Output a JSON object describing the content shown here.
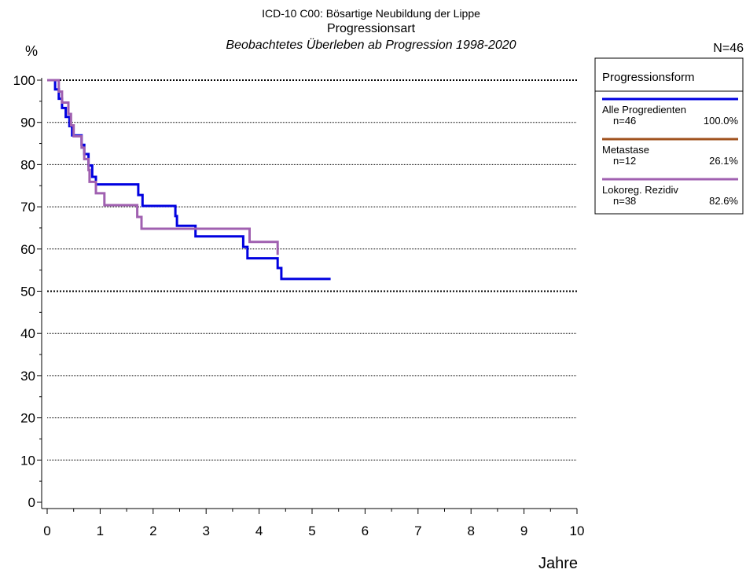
{
  "chart_data": {
    "type": "line",
    "title": "ICD-10 C00: Bösartige Neubildung der Lippe",
    "subtitle": "Progressionsart",
    "subtitle2": "Beobachtetes Überleben ab Progression 1998-2020",
    "n_total": "N=46",
    "ylabel": "%",
    "xlabel": "Jahre",
    "xlim": [
      0,
      10
    ],
    "ylim": [
      0,
      100
    ],
    "x_ticks": [
      "0",
      "1",
      "2",
      "3",
      "4",
      "5",
      "6",
      "7",
      "8",
      "9",
      "10"
    ],
    "y_ticks": [
      "0",
      "10",
      "20",
      "30",
      "40",
      "50",
      "60",
      "70",
      "80",
      "90",
      "100"
    ],
    "grid": "horizontal dotted, heavier at 50 and 100",
    "legend": {
      "title": "Progressionsform",
      "placement": "right",
      "entries": [
        {
          "label": "Alle Progredienten",
          "n": "n=46",
          "pct": "100.0%",
          "color": "#0000e0"
        },
        {
          "label": "Metastase",
          "n": "n=12",
          "pct": "26.1%",
          "color": "#a0521e"
        },
        {
          "label": "Lokoreg. Rezidiv",
          "n": "n=38",
          "pct": "82.6%",
          "color": "#a060b0"
        }
      ]
    },
    "series": [
      {
        "name": "Alle Progredienten",
        "color": "#0000e0",
        "points": [
          [
            0,
            100
          ],
          [
            0.15,
            100
          ],
          [
            0.15,
            97.8
          ],
          [
            0.22,
            97.8
          ],
          [
            0.22,
            95.6
          ],
          [
            0.28,
            95.6
          ],
          [
            0.28,
            93.4
          ],
          [
            0.35,
            93.4
          ],
          [
            0.35,
            91.3
          ],
          [
            0.42,
            91.3
          ],
          [
            0.42,
            89.1
          ],
          [
            0.47,
            89.1
          ],
          [
            0.47,
            86.9
          ],
          [
            0.65,
            86.9
          ],
          [
            0.65,
            84.7
          ],
          [
            0.7,
            84.7
          ],
          [
            0.7,
            82.5
          ],
          [
            0.78,
            82.5
          ],
          [
            0.78,
            79.8
          ],
          [
            0.85,
            79.8
          ],
          [
            0.85,
            77.1
          ],
          [
            0.92,
            77.1
          ],
          [
            0.92,
            75.3
          ],
          [
            1.72,
            75.3
          ],
          [
            1.72,
            72.8
          ],
          [
            1.8,
            72.8
          ],
          [
            1.8,
            70.2
          ],
          [
            2.42,
            70.2
          ],
          [
            2.42,
            67.8
          ],
          [
            2.45,
            67.8
          ],
          [
            2.45,
            65.5
          ],
          [
            2.8,
            65.5
          ],
          [
            2.8,
            63
          ],
          [
            3.7,
            63
          ],
          [
            3.7,
            60.5
          ],
          [
            3.78,
            60.5
          ],
          [
            3.78,
            57.8
          ],
          [
            4.35,
            57.8
          ],
          [
            4.35,
            55.5
          ],
          [
            4.42,
            55.5
          ],
          [
            4.42,
            52.9
          ],
          [
            5.35,
            52.9
          ]
        ]
      },
      {
        "name": "Lokoreg. Rezidiv",
        "color": "#a060b0",
        "points": [
          [
            0,
            100
          ],
          [
            0.22,
            100
          ],
          [
            0.22,
            97.3
          ],
          [
            0.28,
            97.3
          ],
          [
            0.28,
            94.7
          ],
          [
            0.4,
            94.7
          ],
          [
            0.4,
            92
          ],
          [
            0.45,
            92
          ],
          [
            0.45,
            89.3
          ],
          [
            0.5,
            89.3
          ],
          [
            0.5,
            86.7
          ],
          [
            0.65,
            86.7
          ],
          [
            0.65,
            84
          ],
          [
            0.7,
            84
          ],
          [
            0.7,
            81.3
          ],
          [
            0.78,
            81.3
          ],
          [
            0.78,
            78.7
          ],
          [
            0.8,
            78.7
          ],
          [
            0.8,
            75.9
          ],
          [
            0.92,
            75.9
          ],
          [
            0.92,
            73.2
          ],
          [
            1.08,
            73.2
          ],
          [
            1.08,
            70.4
          ],
          [
            1.7,
            70.4
          ],
          [
            1.7,
            67.6
          ],
          [
            1.78,
            67.6
          ],
          [
            1.78,
            64.8
          ],
          [
            3.82,
            64.8
          ],
          [
            3.82,
            61.7
          ],
          [
            4.35,
            61.7
          ],
          [
            4.35,
            58.6
          ]
        ]
      }
    ]
  }
}
